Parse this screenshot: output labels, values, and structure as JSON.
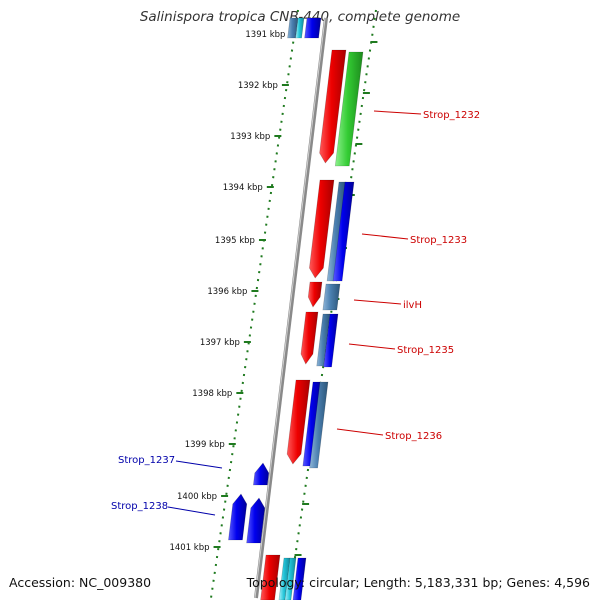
{
  "title": "Salinispora tropica CNB-440, complete genome",
  "footer": {
    "accession": "Accession: NC_009380",
    "topology": "Topology: circular; Length: 5,183,331 bp; Genes: 4,596"
  },
  "colors": {
    "forward_label": "#cc0000",
    "reverse_label": "#0000aa",
    "backbone": "#888888",
    "tick": "#1f7a1f",
    "gene_red": "#ee0000",
    "gene_green": "#33cc33",
    "gene_blue": "#0000ee",
    "gene_steel": "#4a7fb0",
    "gene_cyan": "#22c4d8"
  },
  "kbp_ticks": [
    "1391 kbp",
    "1392 kbp",
    "1393 kbp",
    "1394 kbp",
    "1395 kbp",
    "1396 kbp",
    "1397 kbp",
    "1398 kbp",
    "1399 kbp",
    "1400 kbp",
    "1401 kbp"
  ],
  "gene_labels": [
    {
      "name": "Strop_1232",
      "side": "right"
    },
    {
      "name": "Strop_1233",
      "side": "right"
    },
    {
      "name": "ilvH",
      "side": "right"
    },
    {
      "name": "Strop_1235",
      "side": "right"
    },
    {
      "name": "Strop_1236",
      "side": "right"
    },
    {
      "name": "Strop_1237",
      "side": "left"
    },
    {
      "name": "Strop_1238",
      "side": "left"
    }
  ]
}
